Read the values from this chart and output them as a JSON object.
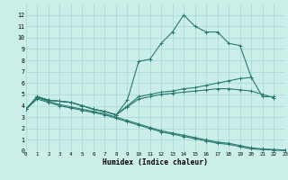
{
  "xlabel": "Humidex (Indice chaleur)",
  "xlim": [
    0,
    23
  ],
  "ylim": [
    0,
    13
  ],
  "xticks": [
    0,
    1,
    2,
    3,
    4,
    5,
    6,
    7,
    8,
    9,
    10,
    11,
    12,
    13,
    14,
    15,
    16,
    17,
    18,
    19,
    20,
    21,
    22,
    23
  ],
  "yticks": [
    0,
    1,
    2,
    3,
    4,
    5,
    6,
    7,
    8,
    9,
    10,
    11,
    12
  ],
  "bg_color": "#cceee8",
  "grid_color": "#aaddda",
  "line_color": "#2a7a70",
  "series": [
    {
      "x": [
        0,
        1,
        2,
        3,
        4,
        5,
        6,
        7,
        8,
        9,
        10,
        11,
        12,
        13,
        14,
        15,
        16,
        17,
        18,
        19,
        20
      ],
      "y": [
        3.7,
        4.8,
        4.5,
        4.4,
        4.3,
        4.0,
        3.7,
        3.5,
        3.2,
        4.5,
        7.9,
        8.1,
        9.5,
        10.5,
        12.0,
        11.0,
        10.5,
        10.5,
        9.5,
        9.3,
        6.5
      ]
    },
    {
      "x": [
        0,
        1,
        2,
        3,
        4,
        5,
        6,
        7,
        8,
        9,
        10,
        11,
        12,
        13,
        14,
        15,
        16,
        17,
        18,
        19,
        20,
        21,
        22
      ],
      "y": [
        3.7,
        4.8,
        4.5,
        4.4,
        4.3,
        4.0,
        3.7,
        3.5,
        3.2,
        4.0,
        4.8,
        5.0,
        5.2,
        5.3,
        5.5,
        5.6,
        5.8,
        6.0,
        6.2,
        6.4,
        6.5,
        4.8,
        4.8
      ]
    },
    {
      "x": [
        0,
        1,
        2,
        3,
        4,
        5,
        6,
        7,
        8,
        9,
        10,
        11,
        12,
        13,
        14,
        15,
        16,
        17,
        18,
        19,
        20,
        21,
        22
      ],
      "y": [
        3.7,
        4.8,
        4.5,
        4.4,
        4.3,
        4.0,
        3.7,
        3.5,
        3.2,
        3.9,
        4.6,
        4.8,
        5.0,
        5.1,
        5.2,
        5.3,
        5.4,
        5.5,
        5.5,
        5.4,
        5.3,
        5.0,
        4.7
      ]
    },
    {
      "x": [
        0,
        1,
        2,
        3,
        4,
        5,
        6,
        7,
        8,
        9,
        10,
        11,
        12,
        13,
        14,
        15,
        16,
        17,
        18,
        19,
        20,
        21,
        22,
        23
      ],
      "y": [
        3.7,
        4.7,
        4.4,
        4.1,
        3.9,
        3.7,
        3.5,
        3.3,
        3.0,
        2.7,
        2.4,
        2.1,
        1.8,
        1.6,
        1.4,
        1.2,
        1.0,
        0.8,
        0.7,
        0.5,
        0.3,
        0.2,
        0.15,
        0.1
      ]
    },
    {
      "x": [
        0,
        1,
        2,
        3,
        4,
        5,
        6,
        7,
        8,
        9,
        10,
        11,
        12,
        13,
        14,
        15,
        16,
        17,
        18,
        19,
        20,
        21,
        22,
        23
      ],
      "y": [
        3.7,
        4.6,
        4.3,
        4.0,
        3.8,
        3.6,
        3.4,
        3.2,
        2.9,
        2.6,
        2.3,
        2.0,
        1.7,
        1.5,
        1.3,
        1.1,
        0.9,
        0.7,
        0.6,
        0.4,
        0.2,
        0.15,
        0.1,
        0.05
      ]
    }
  ]
}
